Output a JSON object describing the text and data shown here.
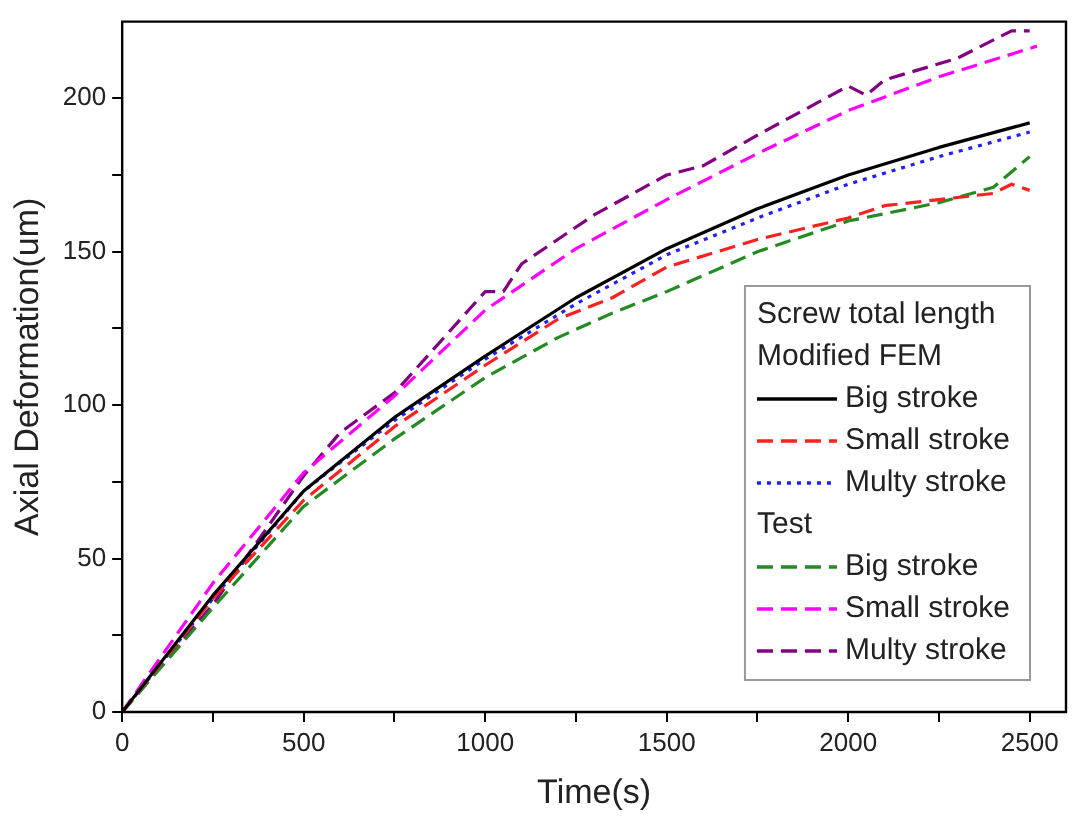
{
  "chart_data": {
    "type": "line",
    "xlabel": "Time(s)",
    "ylabel": "Axial Deformation(um)",
    "legend_title": "Screw total length",
    "annotations": [
      "Modified FEM",
      "Test"
    ],
    "xlim": [
      0,
      2600
    ],
    "xticks": [
      0,
      {
        "value": 250,
        "label": null
      },
      500,
      {
        "value": 750,
        "label": null
      },
      1000,
      {
        "value": 1250,
        "label": null
      },
      1500,
      {
        "value": 1750,
        "label": null
      },
      2000,
      {
        "value": 2250,
        "label": null
      },
      2500
    ],
    "ylim": [
      0,
      225
    ],
    "yticks": [
      0,
      {
        "value": 25,
        "label": null
      },
      50,
      {
        "value": 75,
        "label": null
      },
      100,
      {
        "value": 125,
        "label": null
      },
      150,
      {
        "value": 175,
        "label": null
      },
      200
    ],
    "grid": false,
    "legend": "bottom right",
    "marker": "none",
    "series": [
      {
        "name": "Big stroke",
        "color": "#000000",
        "line_style": "solid",
        "x": [
          0,
          250,
          500,
          750,
          1000,
          1250,
          1500,
          1750,
          2000,
          2250,
          2500
        ],
        "values": [
          0,
          38,
          72,
          96,
          116,
          135,
          151,
          164,
          175,
          184,
          192
        ]
      },
      {
        "name": "Small stroke",
        "color": "#ff2020",
        "line_style": "dashed",
        "x": [
          0,
          250,
          500,
          750,
          1000,
          1200,
          1350,
          1500,
          1750,
          2000,
          2100,
          2250,
          2400,
          2450,
          2500
        ],
        "values": [
          0,
          37,
          69,
          93,
          113,
          128,
          135,
          145,
          154,
          161,
          165,
          167,
          169,
          172,
          170
        ]
      },
      {
        "name": "Multy stroke",
        "color": "#2020ff",
        "line_style": "dotted",
        "x": [
          0,
          250,
          500,
          750,
          1000,
          1250,
          1500,
          1750,
          2000,
          2250,
          2500
        ],
        "values": [
          0,
          37,
          72,
          95,
          115,
          133,
          149,
          161,
          172,
          181,
          189
        ]
      },
      {
        "name": "Big stroke",
        "color": "#228b22",
        "line_style": "dashed",
        "x": [
          0,
          250,
          500,
          750,
          1000,
          1200,
          1350,
          1500,
          1750,
          2000,
          2250,
          2400,
          2500
        ],
        "values": [
          0,
          34,
          67,
          89,
          109,
          122,
          130,
          137,
          150,
          160,
          166,
          171,
          181
        ]
      },
      {
        "name": "Small stroke",
        "color": "#ff00ff",
        "line_style": "dashed",
        "x": [
          0,
          250,
          500,
          750,
          1000,
          1250,
          1500,
          1750,
          2000,
          2250,
          2520
        ],
        "values": [
          0,
          42,
          78,
          103,
          131,
          151,
          167,
          182,
          196,
          207,
          217
        ]
      },
      {
        "name": "Multy stroke",
        "color": "#800080",
        "line_style": "dashed",
        "x": [
          0,
          250,
          500,
          600,
          750,
          1000,
          1050,
          1100,
          1300,
          1500,
          1600,
          1750,
          2000,
          2050,
          2100,
          2300,
          2450,
          2500
        ],
        "values": [
          0,
          35,
          77,
          91,
          104,
          137,
          137,
          146,
          162,
          175,
          178,
          188,
          204,
          201,
          206,
          213,
          222,
          222
        ]
      }
    ]
  }
}
